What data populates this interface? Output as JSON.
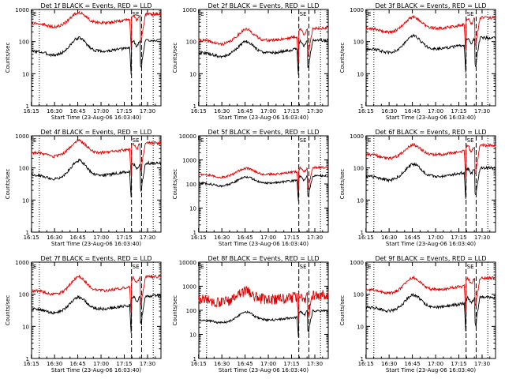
{
  "colors": {
    "events": "#000000",
    "lld": "#e00000"
  },
  "common": {
    "ylabel": "Counts/sec",
    "xlabel": "Start Time (23-Aug-06 16:03:40)",
    "xticks": [
      "16:15",
      "16:30",
      "16:45",
      "17:00",
      "17:15",
      "17:30"
    ],
    "yticks": [
      "1",
      "10",
      "100",
      "1000"
    ],
    "marker_labels": [
      "E",
      "SE"
    ]
  },
  "chart_data": [
    {
      "type": "line",
      "title": "Det 1f BLACK = Events, RED = LLD",
      "scale": "log",
      "ylim": [
        1,
        1000
      ],
      "series": [
        {
          "name": "BLACK = Events",
          "color": "#000000",
          "base": 50,
          "peak": 130,
          "after": 110
        },
        {
          "name": "RED = LLD",
          "color": "#e00000",
          "base": 380,
          "peak": 800,
          "after": 700
        }
      ]
    },
    {
      "type": "line",
      "title": "Det 2f BLACK = Events, RED = LLD",
      "scale": "log",
      "ylim": [
        1,
        1000
      ],
      "series": [
        {
          "name": "BLACK = Events",
          "color": "#000000",
          "base": 45,
          "peak": 100,
          "after": 110
        },
        {
          "name": "RED = LLD",
          "color": "#e00000",
          "base": 110,
          "peak": 240,
          "after": 260
        }
      ]
    },
    {
      "type": "line",
      "title": "Det 3f BLACK = Events, RED = LLD",
      "scale": "log",
      "ylim": [
        1,
        1000
      ],
      "series": [
        {
          "name": "BLACK = Events",
          "color": "#000000",
          "base": 60,
          "peak": 150,
          "after": 130
        },
        {
          "name": "RED = LLD",
          "color": "#e00000",
          "base": 260,
          "peak": 580,
          "after": 550
        }
      ]
    },
    {
      "type": "line",
      "title": "Det 4f BLACK = Events, RED = LLD",
      "scale": "log",
      "ylim": [
        1,
        1000
      ],
      "series": [
        {
          "name": "BLACK = Events",
          "color": "#000000",
          "base": 60,
          "peak": 170,
          "after": 140
        },
        {
          "name": "RED = LLD",
          "color": "#e00000",
          "base": 300,
          "peak": 700,
          "after": 600
        }
      ]
    },
    {
      "type": "line",
      "title": "Det 5f BLACK = Events, RED = LLD",
      "scale": "log",
      "ylim": [
        1,
        10000
      ],
      "series": [
        {
          "name": "BLACK = Events",
          "color": "#000000",
          "base": 110,
          "peak": 200,
          "after": 220
        },
        {
          "name": "RED = LLD",
          "color": "#e00000",
          "base": 250,
          "peak": 450,
          "after": 480
        }
      ]
    },
    {
      "type": "line",
      "title": "Det 6f BLACK = Events, RED = LLD",
      "scale": "log",
      "ylim": [
        1,
        1000
      ],
      "series": [
        {
          "name": "BLACK = Events",
          "color": "#000000",
          "base": 55,
          "peak": 130,
          "after": 100
        },
        {
          "name": "RED = LLD",
          "color": "#e00000",
          "base": 260,
          "peak": 520,
          "after": 500
        }
      ]
    },
    {
      "type": "line",
      "title": "Det 7f BLACK = Events, RED = LLD",
      "scale": "log",
      "ylim": [
        1,
        1000
      ],
      "series": [
        {
          "name": "BLACK = Events",
          "color": "#000000",
          "base": 35,
          "peak": 80,
          "after": 90
        },
        {
          "name": "RED = LLD",
          "color": "#e00000",
          "base": 130,
          "peak": 350,
          "after": 350
        }
      ]
    },
    {
      "type": "line",
      "title": "Det 8f BLACK = Events, RED = LLD",
      "scale": "log",
      "ylim": [
        1,
        10000
      ],
      "series": [
        {
          "name": "BLACK = Events",
          "color": "#000000",
          "base": 40,
          "peak": 85,
          "after": 95
        },
        {
          "name": "RED = LLD",
          "color": "#e00000",
          "base": 280,
          "peak": 600,
          "after": 420
        }
      ]
    },
    {
      "type": "line",
      "title": "Det 9f BLACK = Events, RED = LLD",
      "scale": "log",
      "ylim": [
        1,
        1000
      ],
      "series": [
        {
          "name": "BLACK = Events",
          "color": "#000000",
          "base": 40,
          "peak": 95,
          "after": 80
        },
        {
          "name": "RED = LLD",
          "color": "#e00000",
          "base": 140,
          "peak": 320,
          "after": 320
        }
      ]
    }
  ]
}
